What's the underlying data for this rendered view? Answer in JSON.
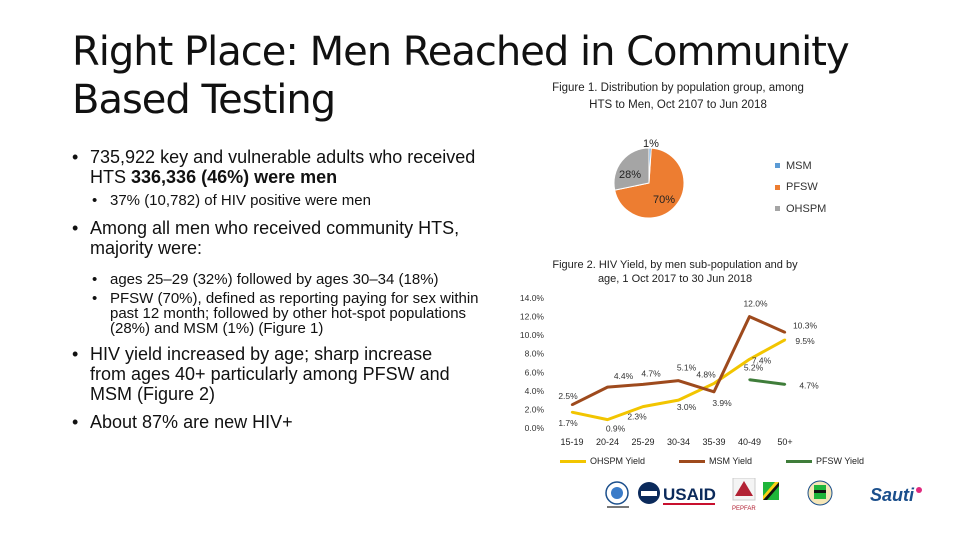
{
  "title": {
    "line1": "Right Place: Men Reached in Community",
    "line2": "Based Testing"
  },
  "bullets": {
    "b1_pre": "735,922 key and vulnerable adults who received HTS ",
    "b1_strong": "336,336 (46%) were men",
    "b1_sub": "37% (10,782) of HIV positive were men",
    "b2": "Among all men who received community HTS, majority were:",
    "b2_sub1": "ages 25–29 (32%) followed by ages 30–34 (18%)",
    "b2_sub2": "PFSW (70%), defined as reporting paying for sex within past 12 month; followed by other hot-spot populations (28%) and MSM (1%) (Figure 1)",
    "b3": "HIV yield increased by age; sharp increase from ages 40+ particularly among PFSW and MSM (Figure 2)",
    "b4": "About 87% are new HIV+"
  },
  "fig1": {
    "title": "Figure 1. Distribution by population group, among HTS to Men, Oct 2107 to Jun 2018",
    "labels": {
      "msm": "1%",
      "ohspm": "28%",
      "pfsw": "70%"
    },
    "legend": [
      "MSM",
      "PFSW",
      "OHSPM"
    ]
  },
  "fig2": {
    "title": "Figure 2. HIV Yield, by men sub-population and by age, 1 Oct 2017 to 30 Jun 2018",
    "legend": [
      "OHSPM Yield",
      "MSM Yield",
      "PFSW Yield"
    ]
  },
  "colors": {
    "msm": "#5b9bd5",
    "pfsw": "#ed7d31",
    "ohspm": "#a5a5a5",
    "ohspm_line": "#f2c500",
    "msm_line": "#9e4a1d",
    "pfsw_line": "#3f7d3a"
  },
  "chart_data": [
    {
      "type": "pie",
      "title": "Figure 1. Distribution by population group, among HTS to Men, Oct 2107 to Jun 2018",
      "categories": [
        "MSM",
        "PFSW",
        "OHSPM"
      ],
      "values": [
        1,
        70,
        28
      ],
      "legend": "right"
    },
    {
      "type": "line",
      "title": "Figure 2. HIV Yield, by men sub-population and by age, 1 Oct 2017 to 30 Jun 2018",
      "categories": [
        "15-19",
        "20-24",
        "25-29",
        "30-34",
        "35-39",
        "40-49",
        "50+"
      ],
      "yticks": [
        "0.0%",
        "2.0%",
        "4.0%",
        "6.0%",
        "8.0%",
        "10.0%",
        "12.0%",
        "14.0%"
      ],
      "ylim": [
        0,
        14
      ],
      "series": [
        {
          "name": "OHSPM Yield",
          "values": [
            1.7,
            0.9,
            2.3,
            3.0,
            4.8,
            7.4,
            9.5
          ],
          "labels": [
            "1.7%",
            "0.9%",
            "2.3%",
            "3.0%",
            "4.8%",
            "7.4%",
            "9.5%"
          ]
        },
        {
          "name": "MSM Yield",
          "values": [
            2.5,
            4.4,
            4.7,
            5.1,
            3.9,
            12.0,
            10.3
          ],
          "labels": [
            "2.5%",
            "4.4%",
            "4.7%",
            "5.1%",
            "3.9%",
            "12.0%",
            "10.3%"
          ]
        },
        {
          "name": "PFSW Yield",
          "values": [
            null,
            null,
            null,
            null,
            null,
            5.2,
            4.7
          ],
          "labels": [
            "",
            "",
            "",
            "",
            "",
            "5.2%",
            "4.7%"
          ]
        }
      ],
      "legend": "bottom"
    }
  ],
  "logos": {
    "usaid": "USAID",
    "pepfar": "PEPFAR",
    "sauti": "Sauti"
  }
}
